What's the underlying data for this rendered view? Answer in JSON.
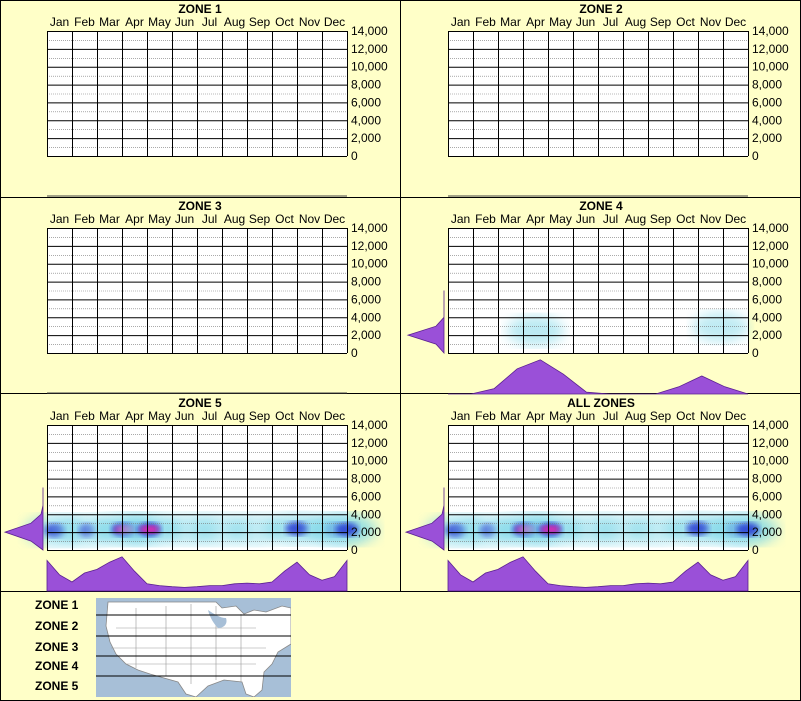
{
  "months": [
    "Jan",
    "Feb",
    "Mar",
    "Apr",
    "May",
    "Jun",
    "Jul",
    "Aug",
    "Sep",
    "Oct",
    "Nov",
    "Dec"
  ],
  "y_ticks": [
    "14,000",
    "12,000",
    "10,000",
    "8,000",
    "6,000",
    "4,000",
    "2,000",
    "0"
  ],
  "colors": {
    "background": "#ffffc8",
    "violet": "#9a50d8",
    "cyan_glow": "#7fd8e8",
    "blue_core": "#2030d0",
    "magenta_core": "#ff2aa8"
  },
  "chart_data": [
    {
      "type": "heatmap",
      "title": "ZONE 1",
      "ylim": [
        0,
        14000
      ],
      "hotspots": [],
      "month_profile": [],
      "elevation_profile": []
    },
    {
      "type": "heatmap",
      "title": "ZONE 2",
      "ylim": [
        0,
        14000
      ],
      "hotspots": [],
      "month_profile": [],
      "elevation_profile": []
    },
    {
      "type": "heatmap",
      "title": "ZONE 3",
      "ylim": [
        0,
        14000
      ],
      "hotspots": [],
      "month_profile": [],
      "elevation_profile": []
    },
    {
      "type": "heatmap",
      "title": "ZONE 4",
      "ylim": [
        0,
        14000
      ],
      "hotspots": [
        {
          "month": 3.0,
          "elev": 2500,
          "intensity": 0.45
        },
        {
          "month": 10.4,
          "elev": 2900,
          "intensity": 0.35
        }
      ],
      "month_profile": [
        0,
        0,
        0.15,
        0.7,
        0.95,
        0.55,
        0.05,
        0,
        0,
        0,
        0.2,
        0.5,
        0.2,
        0
      ],
      "elevation_profile": [
        0,
        0.2,
        0.9,
        0.2,
        0,
        0,
        0,
        0
      ]
    },
    {
      "type": "heatmap",
      "title": "ZONE 5",
      "ylim": [
        0,
        14000
      ],
      "hotspots": [
        {
          "month": -0.2,
          "elev": 2200,
          "intensity": 0.75
        },
        {
          "month": 1.1,
          "elev": 2200,
          "intensity": 0.55
        },
        {
          "month": 2.6,
          "elev": 2300,
          "intensity": 1.0
        },
        {
          "month": 3.6,
          "elev": 2300,
          "intensity": 0.9
        },
        {
          "month": 5.2,
          "elev": 2300,
          "intensity": 0.4
        },
        {
          "month": 6.4,
          "elev": 2300,
          "intensity": 0.35
        },
        {
          "month": 7.8,
          "elev": 2300,
          "intensity": 0.4
        },
        {
          "month": 9.5,
          "elev": 2400,
          "intensity": 0.85
        },
        {
          "month": 11.0,
          "elev": 2300,
          "intensity": 0.6
        },
        {
          "month": 11.9,
          "elev": 2300,
          "intensity": 0.85
        }
      ],
      "month_profile": [
        0.85,
        0.45,
        0.25,
        0.5,
        0.6,
        0.8,
        0.95,
        0.55,
        0.2,
        0.15,
        0.12,
        0.1,
        0.12,
        0.15,
        0.15,
        0.2,
        0.22,
        0.2,
        0.25,
        0.55,
        0.8,
        0.45,
        0.3,
        0.4,
        0.85
      ],
      "elevation_profile": [
        0,
        0.3,
        0.95,
        0.3,
        0.05,
        0,
        0,
        0
      ]
    },
    {
      "type": "heatmap",
      "title": "ALL ZONES",
      "ylim": [
        0,
        14000
      ],
      "hotspots": [
        {
          "month": -0.2,
          "elev": 2200,
          "intensity": 0.75
        },
        {
          "month": 1.1,
          "elev": 2200,
          "intensity": 0.55
        },
        {
          "month": 2.6,
          "elev": 2300,
          "intensity": 1.0
        },
        {
          "month": 3.6,
          "elev": 2300,
          "intensity": 0.9
        },
        {
          "month": 5.2,
          "elev": 2300,
          "intensity": 0.4
        },
        {
          "month": 6.4,
          "elev": 2300,
          "intensity": 0.35
        },
        {
          "month": 7.8,
          "elev": 2300,
          "intensity": 0.4
        },
        {
          "month": 9.5,
          "elev": 2400,
          "intensity": 0.85
        },
        {
          "month": 11.0,
          "elev": 2300,
          "intensity": 0.6
        },
        {
          "month": 11.9,
          "elev": 2300,
          "intensity": 0.85
        }
      ],
      "month_profile": [
        0.85,
        0.45,
        0.25,
        0.5,
        0.6,
        0.8,
        0.95,
        0.55,
        0.2,
        0.15,
        0.12,
        0.1,
        0.12,
        0.15,
        0.15,
        0.2,
        0.22,
        0.2,
        0.25,
        0.55,
        0.8,
        0.45,
        0.3,
        0.4,
        0.85
      ],
      "elevation_profile": [
        0,
        0.3,
        0.95,
        0.3,
        0.05,
        0,
        0,
        0
      ]
    }
  ],
  "legend": {
    "labels": [
      "ZONE 1",
      "ZONE 2",
      "ZONE 3",
      "ZONE 4",
      "ZONE 5"
    ]
  }
}
